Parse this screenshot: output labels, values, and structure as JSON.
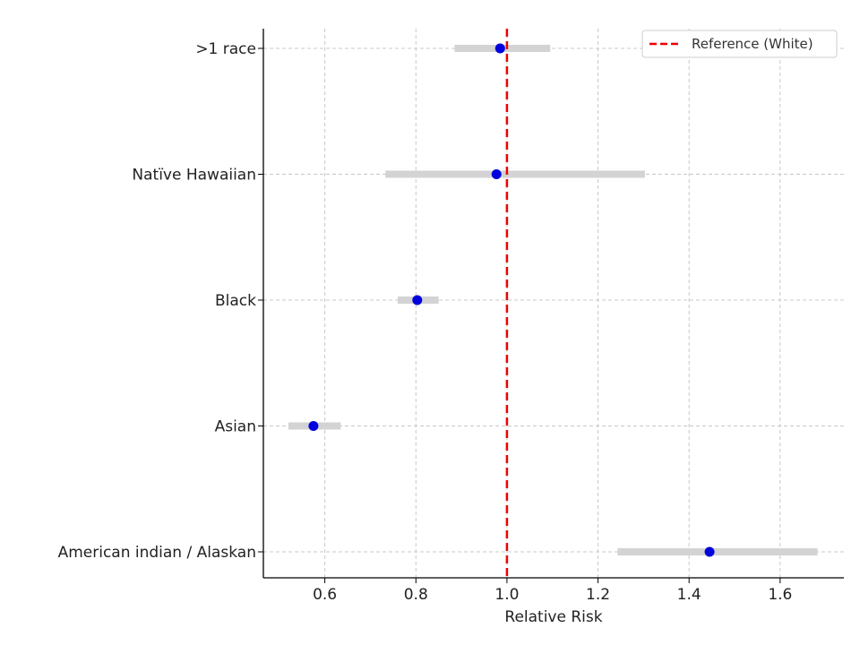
{
  "chart_data": {
    "type": "scatter",
    "subtype": "forest-plot",
    "title": "",
    "xlabel": "Relative Risk",
    "ylabel": "",
    "xlim": [
      0.465,
      1.74
    ],
    "xticks": [
      0.6,
      0.8,
      1.0,
      1.2,
      1.4,
      1.6
    ],
    "xtick_labels": [
      "0.6",
      "0.8",
      "1.0",
      "1.2",
      "1.4",
      "1.6"
    ],
    "grid": true,
    "categories": [
      ">1 race",
      "Natïve Hawaiian",
      "Black",
      "Asian",
      "American indian / Alaskan"
    ],
    "estimates": [
      0.985,
      0.977,
      0.803,
      0.575,
      1.445
    ],
    "ci_lower": [
      0.885,
      0.733,
      0.76,
      0.52,
      1.243
    ],
    "ci_upper": [
      1.095,
      1.303,
      0.85,
      0.635,
      1.682
    ],
    "reference": {
      "value": 1.0,
      "label": "Reference (White)"
    },
    "legend_position": "top-right",
    "colors": {
      "point": "#0000dd",
      "ci_bar": "#d3d3d3",
      "reference": "#ee0000",
      "grid": "#c8c8c8",
      "axis": "#000000"
    }
  }
}
